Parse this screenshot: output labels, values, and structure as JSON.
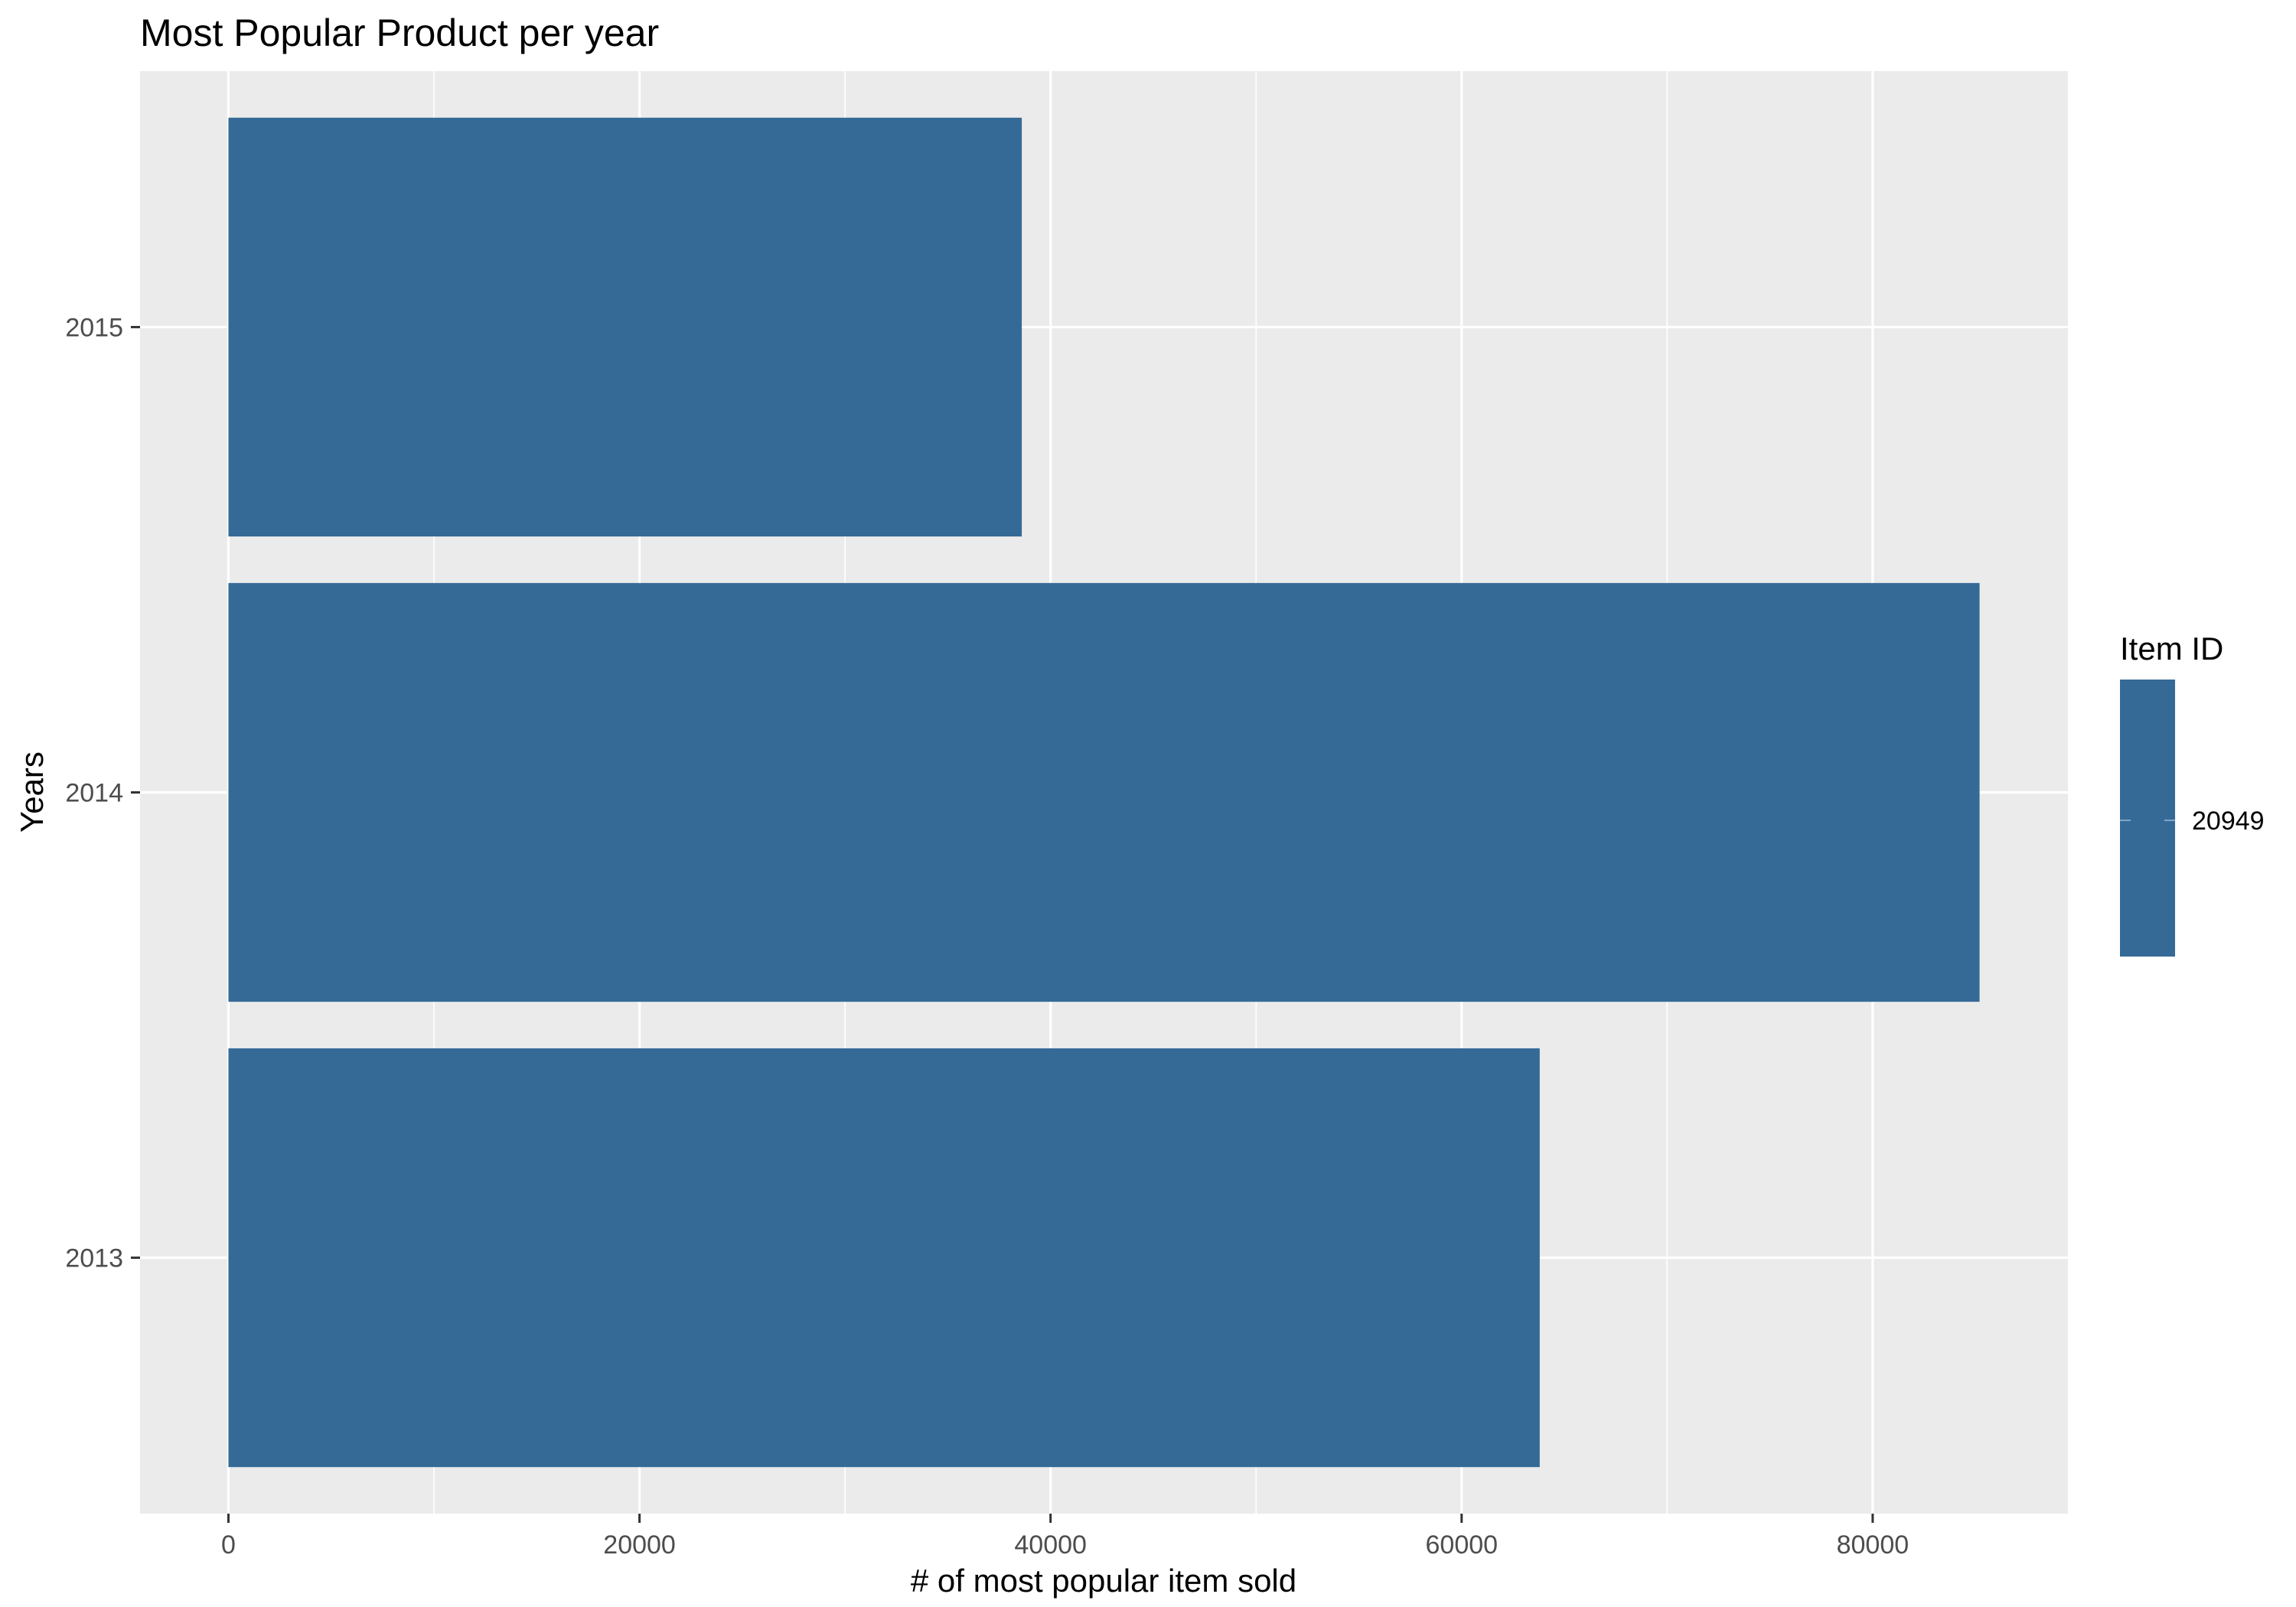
{
  "chart_data": {
    "type": "bar",
    "orientation": "horizontal",
    "title": "Most Popular Product per year",
    "xlabel": "# of most popular item sold",
    "ylabel": "Years",
    "categories": [
      "2013",
      "2014",
      "2015"
    ],
    "series": [
      {
        "name": "20949",
        "values": [
          63800,
          85200,
          38600
        ]
      }
    ],
    "xlim": [
      -4300,
      89500
    ],
    "xticks": [
      0,
      20000,
      40000,
      60000,
      80000
    ],
    "xtick_labels": [
      "0",
      "20000",
      "40000",
      "60000",
      "80000"
    ],
    "grid": true,
    "legend": {
      "title": "Item ID",
      "position": "right",
      "labels": [
        "20949"
      ]
    },
    "colors": {
      "bar": "#356a97",
      "panel": "#ebebeb",
      "grid": "#ffffff"
    }
  }
}
